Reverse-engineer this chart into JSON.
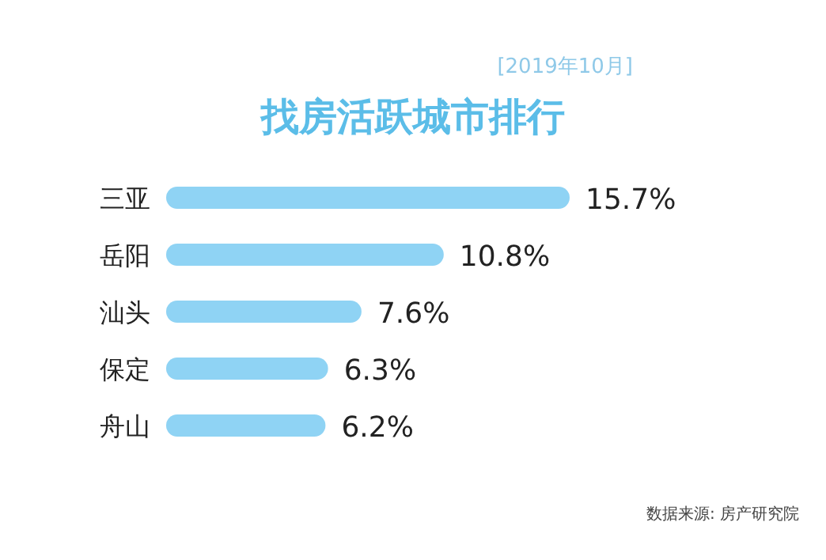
{
  "chart_data": {
    "type": "bar",
    "orientation": "horizontal",
    "title": "找房活跃城市排行",
    "subtitle": "[2019年10月]",
    "categories": [
      "三亚",
      "岳阳",
      "汕头",
      "保定",
      "舟山"
    ],
    "values": [
      15.7,
      10.8,
      7.6,
      6.3,
      6.2
    ],
    "value_labels": [
      "15.7%",
      "10.8%",
      "7.6%",
      "6.3%",
      "6.2%"
    ],
    "color": "#8fd3f4",
    "annotations": [
      "数据来源: 房产研究院"
    ]
  }
}
